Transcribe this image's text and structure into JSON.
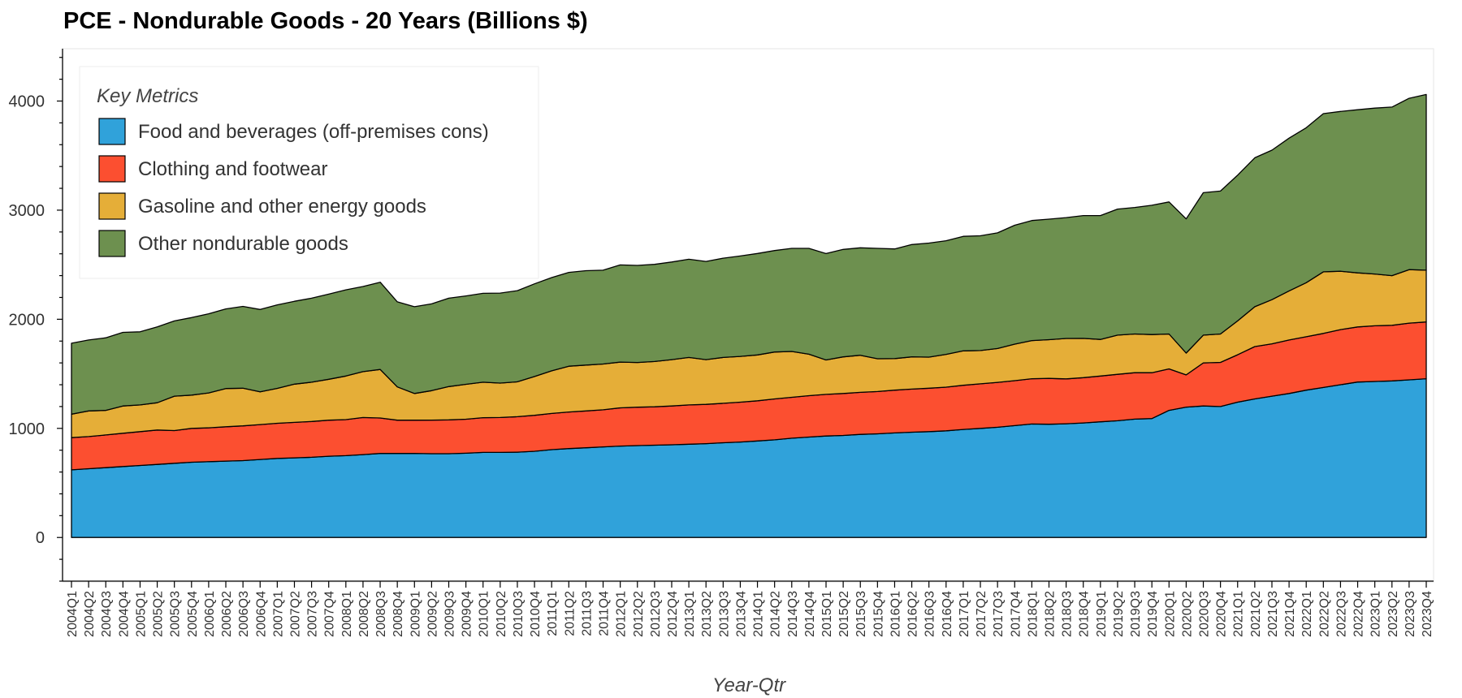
{
  "chart_data": {
    "type": "area",
    "stacked": true,
    "title": "PCE - Nondurable Goods - 20 Years (Billions $)",
    "xlabel": "Year-Qtr",
    "ylabel": "",
    "ylim": [
      -400,
      4450
    ],
    "yticks": [
      0,
      1000,
      2000,
      3000,
      4000
    ],
    "grid": false,
    "legend": {
      "title": "Key Metrics",
      "placement": "top-left"
    },
    "x": [
      "2004Q1",
      "2004Q2",
      "2004Q3",
      "2004Q4",
      "2005Q1",
      "2005Q2",
      "2005Q3",
      "2005Q4",
      "2006Q1",
      "2006Q2",
      "2006Q3",
      "2006Q4",
      "2007Q1",
      "2007Q2",
      "2007Q3",
      "2007Q4",
      "2008Q1",
      "2008Q2",
      "2008Q3",
      "2008Q4",
      "2009Q1",
      "2009Q2",
      "2009Q3",
      "2009Q4",
      "2010Q1",
      "2010Q2",
      "2010Q3",
      "2010Q4",
      "2011Q1",
      "2011Q2",
      "2011Q3",
      "2011Q4",
      "2012Q1",
      "2012Q2",
      "2012Q3",
      "2012Q4",
      "2013Q1",
      "2013Q2",
      "2013Q3",
      "2013Q4",
      "2014Q1",
      "2014Q2",
      "2014Q3",
      "2014Q4",
      "2015Q1",
      "2015Q2",
      "2015Q3",
      "2015Q4",
      "2016Q1",
      "2016Q2",
      "2016Q3",
      "2016Q4",
      "2017Q1",
      "2017Q2",
      "2017Q3",
      "2017Q4",
      "2018Q1",
      "2018Q2",
      "2018Q3",
      "2018Q4",
      "2019Q1",
      "2019Q2",
      "2019Q3",
      "2019Q4",
      "2020Q1",
      "2020Q2",
      "2020Q3",
      "2020Q4",
      "2021Q1",
      "2021Q2",
      "2021Q3",
      "2021Q4",
      "2022Q1",
      "2022Q2",
      "2022Q3",
      "2022Q4",
      "2023Q1",
      "2023Q2",
      "2023Q3",
      "2023Q4"
    ],
    "series": [
      {
        "name": "Food and beverages (off-premises cons)",
        "color": "#30a2da",
        "values": [
          620,
          630,
          640,
          650,
          660,
          670,
          680,
          690,
          695,
          700,
          705,
          715,
          725,
          730,
          735,
          745,
          750,
          760,
          770,
          770,
          770,
          768,
          768,
          772,
          780,
          780,
          782,
          790,
          805,
          815,
          822,
          830,
          838,
          842,
          846,
          850,
          855,
          860,
          868,
          875,
          885,
          895,
          910,
          920,
          930,
          935,
          945,
          950,
          958,
          965,
          970,
          978,
          990,
          1000,
          1010,
          1025,
          1040,
          1038,
          1042,
          1050,
          1060,
          1070,
          1085,
          1090,
          1165,
          1195,
          1205,
          1200,
          1240,
          1270,
          1295,
          1320,
          1350,
          1375,
          1400,
          1425,
          1430,
          1435,
          1445,
          1455
        ]
      },
      {
        "name": "Clothing and footwear",
        "color": "#fc4f30",
        "values": [
          295,
          295,
          300,
          305,
          310,
          315,
          300,
          310,
          310,
          315,
          318,
          320,
          322,
          325,
          328,
          330,
          330,
          340,
          325,
          305,
          305,
          308,
          310,
          312,
          318,
          320,
          325,
          330,
          332,
          335,
          338,
          340,
          350,
          352,
          352,
          355,
          360,
          360,
          362,
          365,
          368,
          375,
          375,
          380,
          382,
          385,
          385,
          388,
          392,
          395,
          398,
          400,
          405,
          408,
          412,
          412,
          415,
          420,
          412,
          415,
          420,
          425,
          425,
          420,
          380,
          295,
          395,
          405,
          435,
          480,
          480,
          490,
          490,
          495,
          505,
          505,
          510,
          510,
          520,
          520
        ]
      },
      {
        "name": "Gasoline and other energy goods",
        "color": "#e5ae38",
        "values": [
          215,
          235,
          225,
          250,
          245,
          250,
          315,
          305,
          320,
          350,
          345,
          300,
          320,
          350,
          360,
          375,
          400,
          420,
          445,
          305,
          245,
          270,
          305,
          320,
          325,
          315,
          320,
          355,
          390,
          420,
          420,
          420,
          420,
          410,
          415,
          425,
          435,
          410,
          420,
          420,
          420,
          430,
          420,
          380,
          315,
          335,
          340,
          300,
          290,
          295,
          285,
          300,
          315,
          305,
          310,
          335,
          350,
          355,
          370,
          360,
          335,
          360,
          355,
          350,
          320,
          200,
          255,
          260,
          310,
          365,
          405,
          450,
          495,
          565,
          535,
          495,
          475,
          455,
          490,
          475
        ]
      },
      {
        "name": "Other nondurable goods",
        "color": "#6d904f",
        "values": [
          650,
          650,
          665,
          675,
          670,
          695,
          690,
          710,
          725,
          730,
          750,
          755,
          765,
          760,
          770,
          780,
          790,
          780,
          800,
          780,
          795,
          795,
          810,
          810,
          815,
          825,
          835,
          850,
          855,
          860,
          865,
          860,
          890,
          890,
          890,
          895,
          900,
          900,
          910,
          920,
          930,
          930,
          945,
          970,
          975,
          985,
          985,
          1012,
          1005,
          1030,
          1045,
          1042,
          1050,
          1052,
          1060,
          1090,
          1100,
          1105,
          1108,
          1125,
          1135,
          1155,
          1160,
          1185,
          1210,
          1230,
          1305,
          1310,
          1335,
          1365,
          1370,
          1400,
          1420,
          1450,
          1465,
          1495,
          1520,
          1545,
          1570,
          1610
        ]
      }
    ]
  }
}
